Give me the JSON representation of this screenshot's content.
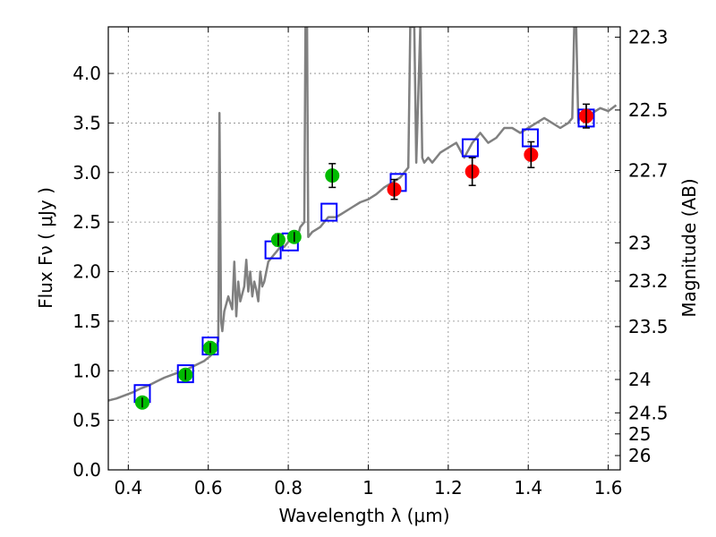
{
  "chart_data": {
    "type": "scatter",
    "title": "",
    "xlabel": "Wavelength  λ (μm)",
    "ylabel": "Flux  Fν  ( μJy )",
    "y2label": "Magnitude (AB)",
    "xlim": [
      0.35,
      1.63
    ],
    "ylim": [
      0.0,
      4.47
    ],
    "xticks": [
      0.4,
      0.6,
      0.8,
      1.0,
      1.2,
      1.4,
      1.6
    ],
    "xtick_labels": [
      "0.4",
      "0.6",
      "0.8",
      "1",
      "1.2",
      "1.4",
      "1.6"
    ],
    "yticks": [
      0.0,
      0.5,
      1.0,
      1.5,
      2.0,
      2.5,
      3.0,
      3.5,
      4.0
    ],
    "ytick_labels": [
      "0.0",
      "0.5",
      "1.0",
      "1.5",
      "2.0",
      "2.5",
      "3.0",
      "3.5",
      "4.0"
    ],
    "y2ticks": [
      22.3,
      22.5,
      22.7,
      23,
      23.2,
      23.5,
      24,
      24.5,
      25,
      26
    ],
    "y2tick_labels": [
      "22.3",
      "22.5",
      "22.7",
      "23",
      "23.2",
      "23.5",
      "24",
      "24.5",
      "25",
      "26"
    ],
    "grid": true,
    "colors": {
      "model_spectrum": "#808080",
      "model_photometry": "#0000ff",
      "optical_photometry": "#00bb00",
      "nir_photometry": "#ff0000",
      "error_bar": "#000000"
    },
    "series": [
      {
        "name": "model spectrum",
        "style": "line",
        "x": [
          0.35,
          0.37,
          0.39,
          0.41,
          0.43,
          0.45,
          0.47,
          0.49,
          0.51,
          0.53,
          0.55,
          0.57,
          0.59,
          0.605,
          0.615,
          0.625,
          0.628,
          0.632,
          0.635,
          0.64,
          0.65,
          0.66,
          0.665,
          0.67,
          0.675,
          0.68,
          0.69,
          0.695,
          0.7,
          0.705,
          0.71,
          0.715,
          0.72,
          0.725,
          0.73,
          0.735,
          0.74,
          0.75,
          0.76,
          0.77,
          0.78,
          0.79,
          0.8,
          0.81,
          0.82,
          0.83,
          0.84,
          0.843,
          0.845,
          0.847,
          0.85,
          0.86,
          0.88,
          0.9,
          0.92,
          0.94,
          0.96,
          0.98,
          1.0,
          1.02,
          1.04,
          1.06,
          1.08,
          1.1,
          1.105,
          1.11,
          1.115,
          1.12,
          1.13,
          1.135,
          1.14,
          1.15,
          1.16,
          1.18,
          1.2,
          1.22,
          1.24,
          1.26,
          1.28,
          1.3,
          1.32,
          1.34,
          1.36,
          1.38,
          1.4,
          1.42,
          1.44,
          1.46,
          1.48,
          1.5,
          1.51,
          1.515,
          1.52,
          1.525,
          1.53,
          1.54,
          1.56,
          1.58,
          1.6,
          1.62
        ],
        "y": [
          0.7,
          0.72,
          0.75,
          0.78,
          0.82,
          0.85,
          0.89,
          0.93,
          0.96,
          0.99,
          1.02,
          1.06,
          1.1,
          1.15,
          1.2,
          1.3,
          3.6,
          1.5,
          1.4,
          1.6,
          1.75,
          1.62,
          2.1,
          1.55,
          1.9,
          1.7,
          1.85,
          2.12,
          1.8,
          2.0,
          1.75,
          1.9,
          1.82,
          1.7,
          2.0,
          1.85,
          1.9,
          2.1,
          2.15,
          2.2,
          2.25,
          2.25,
          2.3,
          2.4,
          2.3,
          2.45,
          2.5,
          4.47,
          4.47,
          4.47,
          2.35,
          2.4,
          2.45,
          2.55,
          2.55,
          2.6,
          2.65,
          2.7,
          2.73,
          2.78,
          2.85,
          2.9,
          2.95,
          3.05,
          4.47,
          4.47,
          4.47,
          3.1,
          4.47,
          3.15,
          3.1,
          3.15,
          3.1,
          3.2,
          3.25,
          3.3,
          3.15,
          3.3,
          3.4,
          3.3,
          3.35,
          3.45,
          3.45,
          3.4,
          3.45,
          3.5,
          3.55,
          3.5,
          3.45,
          3.5,
          3.55,
          4.47,
          4.47,
          3.5,
          3.6,
          3.55,
          3.6,
          3.65,
          3.62,
          3.68
        ]
      },
      {
        "name": "model photometry",
        "style": "open-square",
        "x": [
          0.435,
          0.543,
          0.605,
          0.762,
          0.805,
          0.902,
          1.075,
          1.255,
          1.405,
          1.545
        ],
        "y": [
          0.77,
          0.97,
          1.25,
          2.22,
          2.3,
          2.6,
          2.9,
          3.25,
          3.35,
          3.55
        ]
      },
      {
        "name": "optical photometry",
        "style": "filled-circle",
        "x": [
          0.435,
          0.543,
          0.605,
          0.775,
          0.815,
          0.91
        ],
        "y": [
          0.68,
          0.96,
          1.23,
          2.32,
          2.35,
          2.97
        ],
        "yerr": [
          0.05,
          0.05,
          0.05,
          0.06,
          0.05,
          0.12
        ]
      },
      {
        "name": "nir photometry",
        "style": "filled-circle",
        "x": [
          1.065,
          1.26,
          1.407,
          1.545
        ],
        "y": [
          2.83,
          3.01,
          3.18,
          3.57
        ],
        "yerr": [
          0.1,
          0.14,
          0.13,
          0.12
        ]
      }
    ]
  }
}
